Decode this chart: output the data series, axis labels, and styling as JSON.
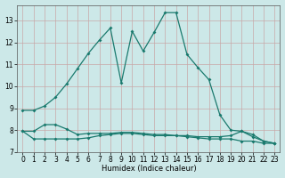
{
  "xlabel": "Humidex (Indice chaleur)",
  "bg_color": "#cce8e8",
  "grid_color": "#c8a8a8",
  "line_color": "#1a7a6e",
  "xlim": [
    -0.5,
    23.5
  ],
  "ylim": [
    7.0,
    13.7
  ],
  "yticks": [
    7,
    8,
    9,
    10,
    11,
    12,
    13
  ],
  "xticks": [
    0,
    1,
    2,
    3,
    4,
    5,
    6,
    7,
    8,
    9,
    10,
    11,
    12,
    13,
    14,
    15,
    16,
    17,
    18,
    19,
    20,
    21,
    22,
    23
  ],
  "main_x": [
    0,
    1,
    2,
    3,
    4,
    5,
    6,
    7,
    8,
    9,
    10,
    11,
    12,
    13,
    14,
    15,
    16,
    17,
    18,
    19,
    20,
    21,
    22,
    23
  ],
  "main_y": [
    8.9,
    8.9,
    9.1,
    9.5,
    10.1,
    10.8,
    11.5,
    12.1,
    12.65,
    10.15,
    12.5,
    11.6,
    12.45,
    13.35,
    13.35,
    11.45,
    10.85,
    10.3,
    8.7,
    8.0,
    7.95,
    7.8,
    7.5,
    7.4
  ],
  "mid_x": [
    0,
    1,
    2,
    3,
    4,
    5,
    6,
    7,
    8,
    9,
    10,
    11,
    12,
    13,
    14,
    15,
    16,
    17,
    18,
    19,
    20,
    21,
    22,
    23
  ],
  "mid_y": [
    7.95,
    7.95,
    8.25,
    8.25,
    8.05,
    7.8,
    7.85,
    7.85,
    7.85,
    7.9,
    7.9,
    7.85,
    7.8,
    7.8,
    7.75,
    7.75,
    7.7,
    7.7,
    7.7,
    7.75,
    7.95,
    7.7,
    7.5,
    7.4
  ],
  "low_x": [
    0,
    1,
    2,
    3,
    4,
    5,
    6,
    7,
    8,
    9,
    10,
    11,
    12,
    13,
    14,
    15,
    16,
    17,
    18,
    19,
    20,
    21,
    22,
    23
  ],
  "low_y": [
    7.95,
    7.6,
    7.6,
    7.6,
    7.6,
    7.6,
    7.65,
    7.75,
    7.8,
    7.85,
    7.85,
    7.8,
    7.75,
    7.75,
    7.75,
    7.7,
    7.65,
    7.6,
    7.6,
    7.6,
    7.5,
    7.5,
    7.4,
    7.4
  ],
  "markersize": 2.0,
  "linewidth": 0.9,
  "tick_fontsize": 5.5,
  "xlabel_fontsize": 6.0
}
